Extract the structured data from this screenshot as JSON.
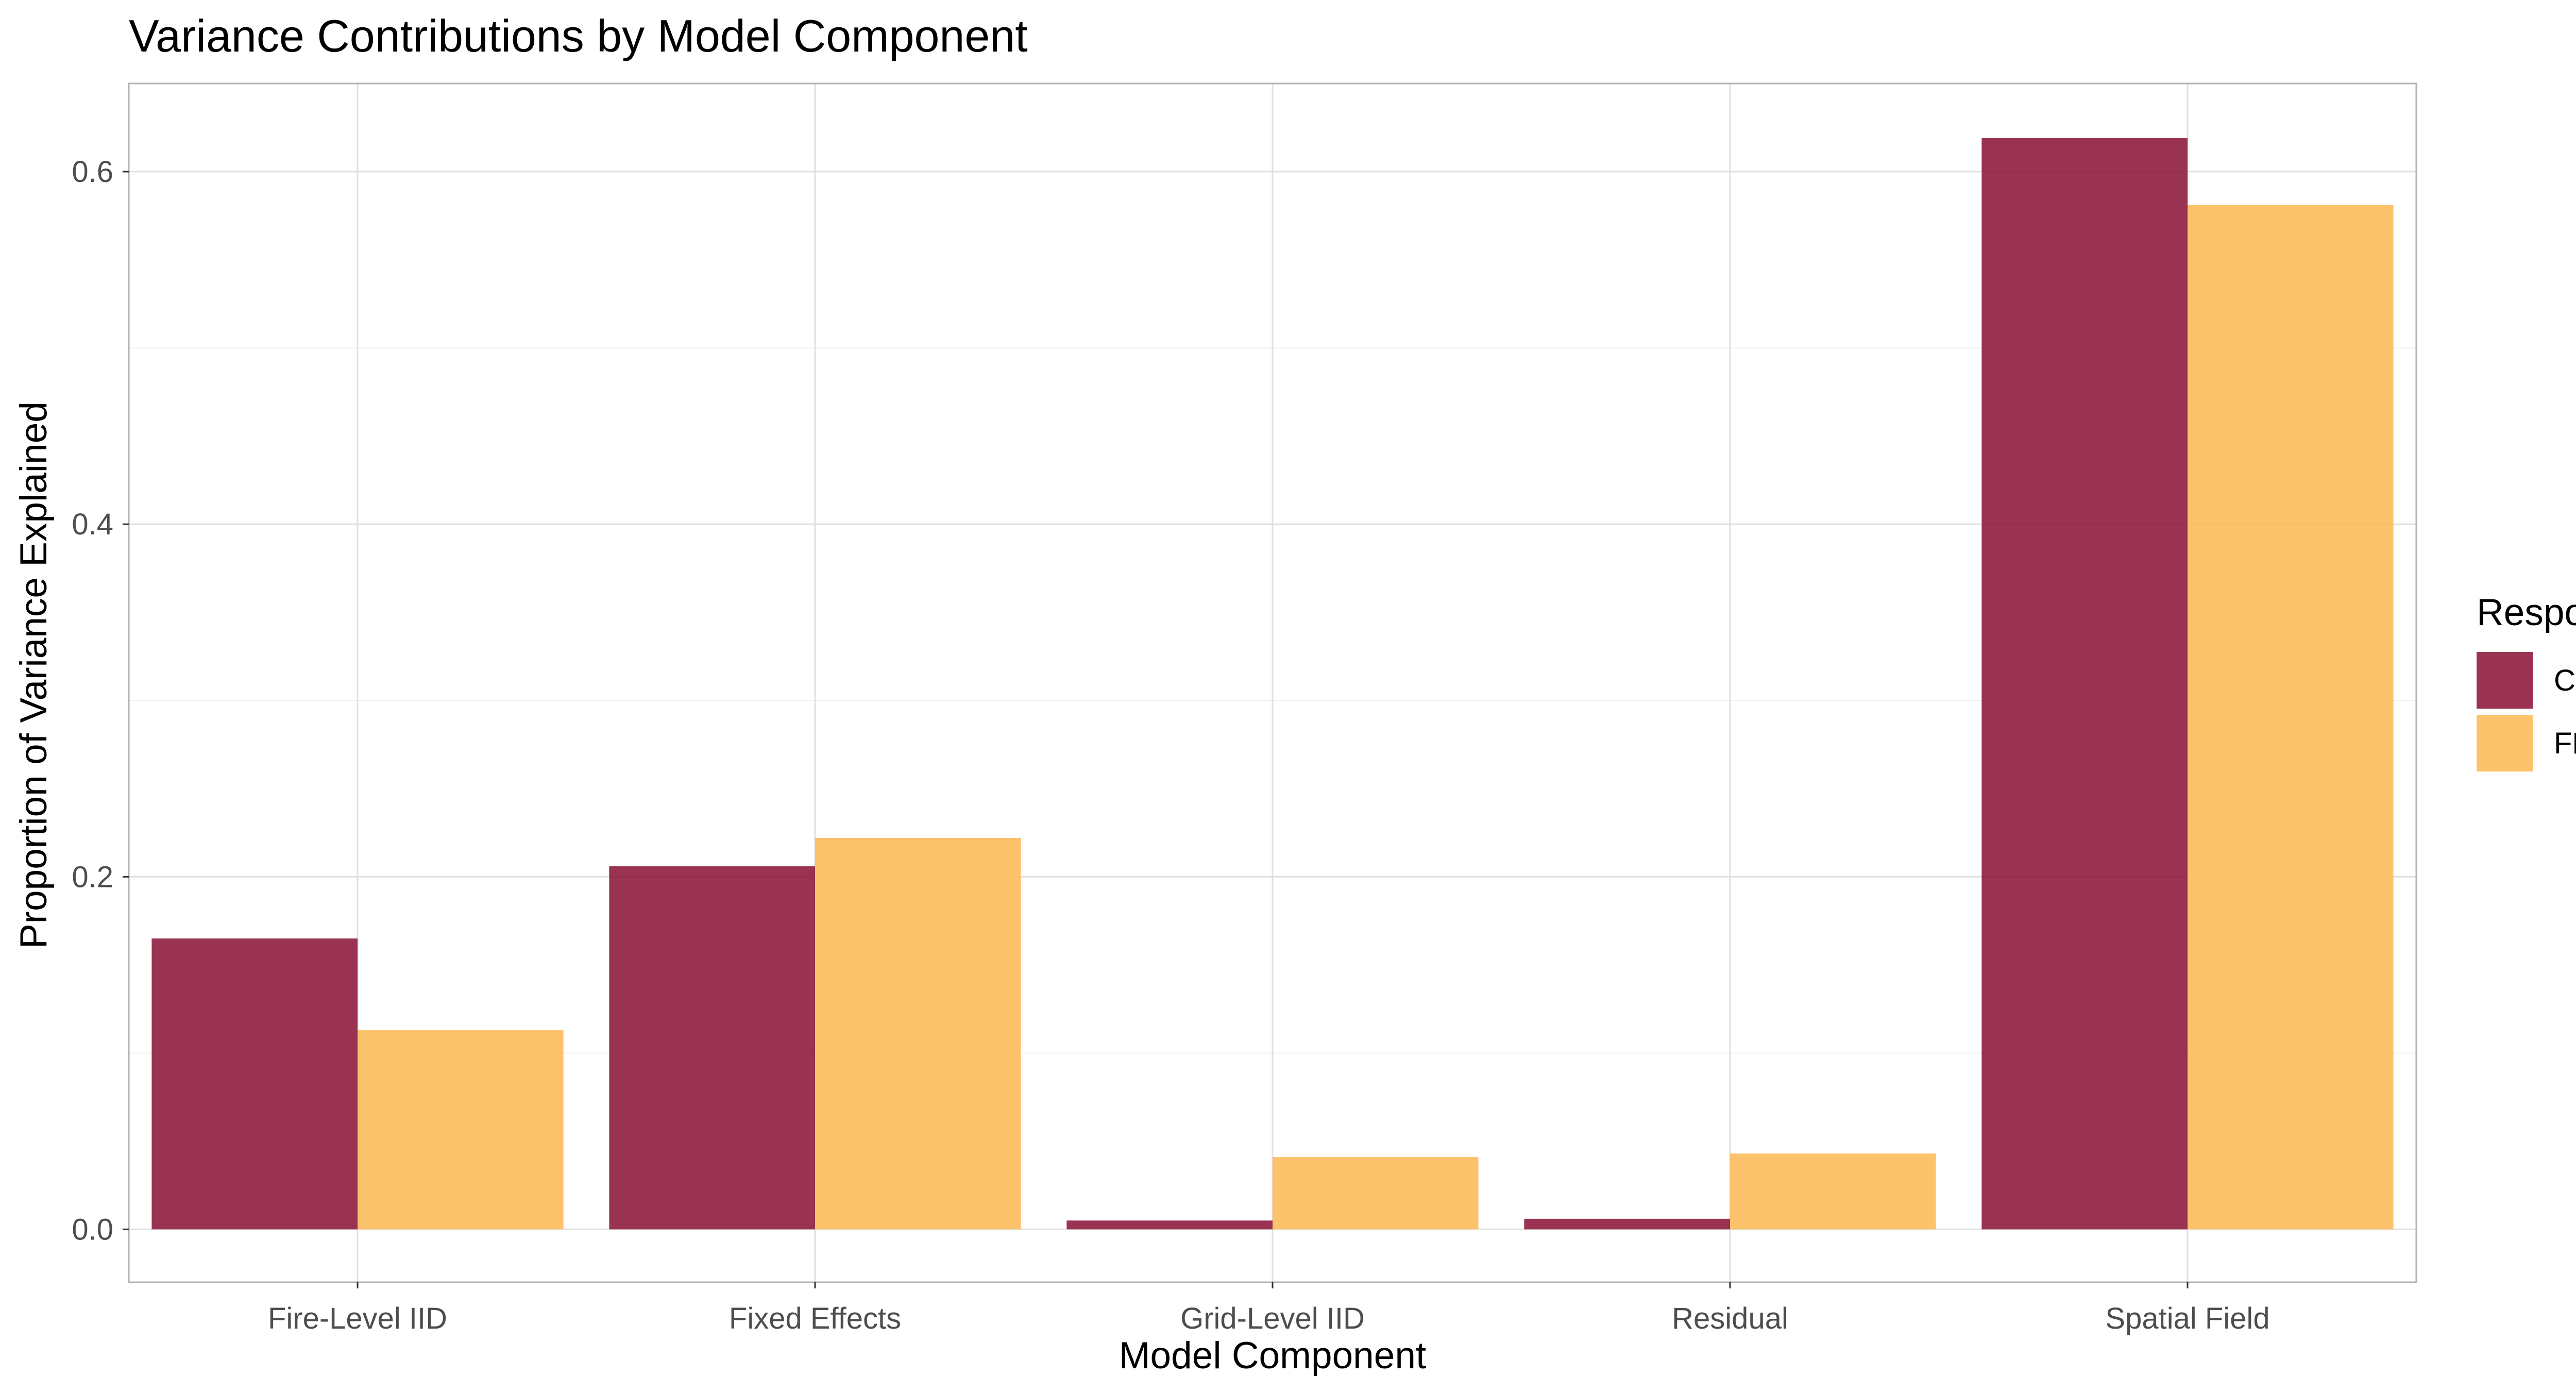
{
  "chart_data": {
    "type": "bar",
    "title": "Variance Contributions by Model Component",
    "xlabel": "Model Component",
    "ylabel": "Proportion of Variance Explained",
    "categories": [
      "Fire-Level IID",
      "Fixed Effects",
      "Grid-Level IID",
      "Residual",
      "Spatial Field"
    ],
    "series": [
      {
        "name": "CBI",
        "color": "#8B1538",
        "values": [
          0.165,
          0.206,
          0.005,
          0.006,
          0.619
        ]
      },
      {
        "name": "FRP",
        "color": "#FDBB5C",
        "values": [
          0.113,
          0.222,
          0.041,
          0.043,
          0.581
        ]
      }
    ],
    "ylim": [
      -0.03,
      0.65
    ],
    "yticks": [
      0.0,
      0.2,
      0.4,
      0.6
    ],
    "ytick_labels": [
      "0.0",
      "0.2",
      "0.4",
      "0.6"
    ],
    "grid": true,
    "legend": {
      "title": "Response",
      "position": "right"
    }
  }
}
